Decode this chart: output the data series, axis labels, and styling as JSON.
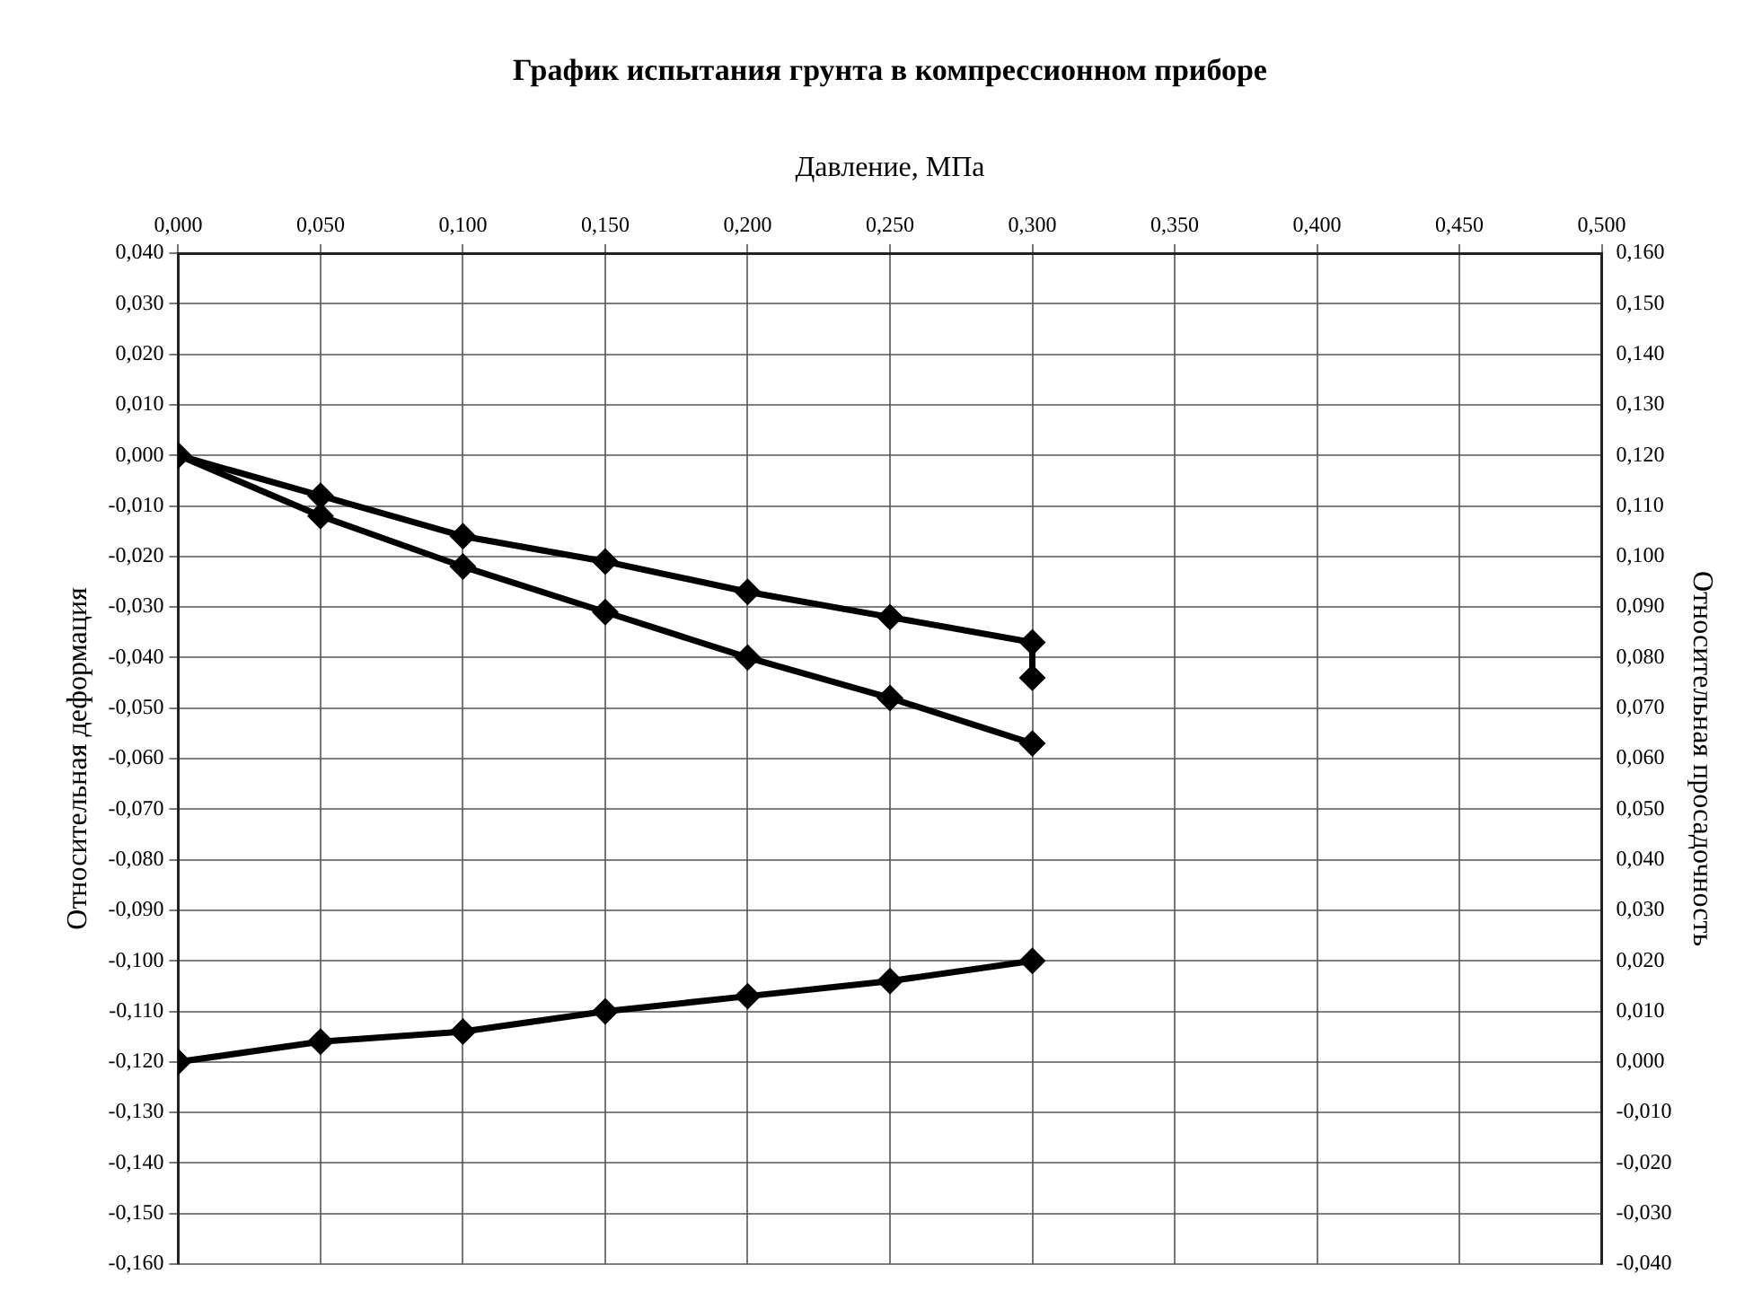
{
  "chart_data": {
    "type": "line",
    "title": "График испытания грунта в компрессионном приборе",
    "xlabel": "Давление, МПа",
    "ylabel": "Относительная деформация",
    "y2label": "Относительная просадочность",
    "series": [
      {
        "color": "#000000",
        "x": [
          0,
          0.05,
          0.1,
          0.15,
          0.2,
          0.25,
          0.3,
          0.3
        ],
        "values": [
          0,
          -0.008,
          -0.016,
          -0.021,
          -0.027,
          -0.032,
          -0.037,
          -0.044
        ]
      },
      {
        "color": "#000000",
        "x": [
          0,
          0.05,
          0.1,
          0.15,
          0.2,
          0.25,
          0.3
        ],
        "values": [
          0,
          -0.012,
          -0.022,
          -0.031,
          -0.04,
          -0.048,
          -0.057
        ]
      },
      {
        "color": "#000000",
        "axis": "y2",
        "x": [
          0,
          0.05,
          0.1,
          0.15,
          0.2,
          0.25,
          0.3
        ],
        "values": [
          0,
          0.004,
          0.006,
          0.01,
          0.013,
          0.016,
          0.02
        ]
      }
    ],
    "xlim": [
      0,
      0.5
    ],
    "xticks": [
      {
        "value": 0,
        "label": "0,000"
      },
      {
        "value": 0.05,
        "label": "0,050"
      },
      {
        "value": 0.1,
        "label": "0,100"
      },
      {
        "value": 0.15,
        "label": "0,150"
      },
      {
        "value": 0.2,
        "label": "0,200"
      },
      {
        "value": 0.25,
        "label": "0,250"
      },
      {
        "value": 0.3,
        "label": "0,300"
      },
      {
        "value": 0.35,
        "label": "0,350"
      },
      {
        "value": 0.4,
        "label": "0,400"
      },
      {
        "value": 0.45,
        "label": "0,450"
      },
      {
        "value": 0.5,
        "label": "0,500"
      }
    ],
    "ylim": [
      -0.16,
      0.04
    ],
    "yticks": [
      {
        "value": 0.04,
        "label": "0,040"
      },
      {
        "value": 0.03,
        "label": "0,030"
      },
      {
        "value": 0.02,
        "label": "0,020"
      },
      {
        "value": 0.01,
        "label": "0,010"
      },
      {
        "value": 0,
        "label": "0,000"
      },
      {
        "value": -0.01,
        "label": "-0,010"
      },
      {
        "value": -0.02,
        "label": "-0,020"
      },
      {
        "value": -0.03,
        "label": "-0,030"
      },
      {
        "value": -0.04,
        "label": "-0,040"
      },
      {
        "value": -0.05,
        "label": "-0,050"
      },
      {
        "value": -0.06,
        "label": "-0,060"
      },
      {
        "value": -0.07,
        "label": "-0,070"
      },
      {
        "value": -0.08,
        "label": "-0,080"
      },
      {
        "value": -0.09,
        "label": "-0,090"
      },
      {
        "value": -0.1,
        "label": "-0,100"
      },
      {
        "value": -0.11,
        "label": "-0,110"
      },
      {
        "value": -0.12,
        "label": "-0,120"
      },
      {
        "value": -0.13,
        "label": "-0,130"
      },
      {
        "value": -0.14,
        "label": "-0,140"
      },
      {
        "value": -0.15,
        "label": "-0,150"
      },
      {
        "value": -0.16,
        "label": "-0,160"
      }
    ],
    "y2lim": [
      -0.04,
      0.16
    ],
    "y2ticks": [
      {
        "value": 0.16,
        "label": "0,160"
      },
      {
        "value": 0.15,
        "label": "0,150"
      },
      {
        "value": 0.14,
        "label": "0,140"
      },
      {
        "value": 0.13,
        "label": "0,130"
      },
      {
        "value": 0.12,
        "label": "0,120"
      },
      {
        "value": 0.11,
        "label": "0,110"
      },
      {
        "value": 0.1,
        "label": "0,100"
      },
      {
        "value": 0.09,
        "label": "0,090"
      },
      {
        "value": 0.08,
        "label": "0,080"
      },
      {
        "value": 0.07,
        "label": "0,070"
      },
      {
        "value": 0.06,
        "label": "0,060"
      },
      {
        "value": 0.05,
        "label": "0,050"
      },
      {
        "value": 0.04,
        "label": "0,040"
      },
      {
        "value": 0.03,
        "label": "0,030"
      },
      {
        "value": 0.02,
        "label": "0,020"
      },
      {
        "value": 0.01,
        "label": "0,010"
      },
      {
        "value": 0,
        "label": "0,000"
      },
      {
        "value": -0.01,
        "label": "-0,010"
      },
      {
        "value": -0.02,
        "label": "-0,020"
      },
      {
        "value": -0.03,
        "label": "-0,030"
      },
      {
        "value": -0.04,
        "label": "-0,040"
      }
    ],
    "grid": true,
    "legend": false,
    "marker": "diamond",
    "line_style": "solid"
  }
}
